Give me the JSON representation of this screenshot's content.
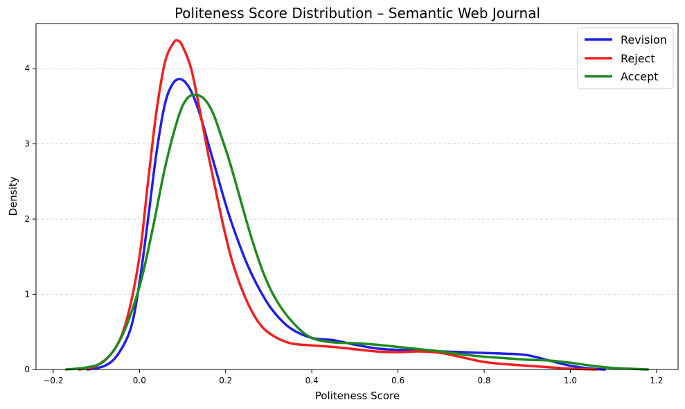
{
  "chart_data": {
    "type": "line",
    "title": "Politeness Score Distribution – Semantic Web Journal",
    "xlabel": "Politeness Score",
    "ylabel": "Density",
    "xlim": [
      -0.24,
      1.25
    ],
    "ylim": [
      0,
      4.6
    ],
    "xticks": [
      -0.2,
      0.0,
      0.2,
      0.4,
      0.6,
      0.8,
      1.0,
      1.2
    ],
    "xtick_labels": [
      "−0.2",
      "0.0",
      "0.2",
      "0.4",
      "0.6",
      "0.8",
      "1.0",
      "1.2"
    ],
    "yticks": [
      0,
      1,
      2,
      3,
      4
    ],
    "ytick_labels": [
      "0",
      "1",
      "2",
      "3",
      "4"
    ],
    "grid": "y-dashed",
    "legend_position": "top-right",
    "series": [
      {
        "name": "Revision",
        "color": "#1f1fe8",
        "x": [
          -0.12,
          -0.08,
          -0.05,
          -0.02,
          0.0,
          0.02,
          0.04,
          0.06,
          0.08,
          0.1,
          0.12,
          0.14,
          0.16,
          0.18,
          0.2,
          0.22,
          0.25,
          0.28,
          0.31,
          0.35,
          0.4,
          0.45,
          0.5,
          0.55,
          0.6,
          0.65,
          0.7,
          0.75,
          0.8,
          0.85,
          0.9,
          0.95,
          1.0,
          1.05,
          1.08
        ],
        "y": [
          0.0,
          0.05,
          0.2,
          0.55,
          1.15,
          2.0,
          2.9,
          3.55,
          3.82,
          3.85,
          3.7,
          3.4,
          3.0,
          2.6,
          2.2,
          1.85,
          1.4,
          1.05,
          0.78,
          0.55,
          0.42,
          0.39,
          0.33,
          0.28,
          0.26,
          0.25,
          0.24,
          0.23,
          0.22,
          0.21,
          0.19,
          0.12,
          0.05,
          0.01,
          0.0
        ]
      },
      {
        "name": "Reject",
        "color": "#f21f1f",
        "x": [
          -0.14,
          -0.1,
          -0.06,
          -0.03,
          0.0,
          0.02,
          0.04,
          0.06,
          0.08,
          0.09,
          0.1,
          0.12,
          0.14,
          0.16,
          0.18,
          0.2,
          0.22,
          0.25,
          0.28,
          0.31,
          0.35,
          0.4,
          0.45,
          0.5,
          0.55,
          0.6,
          0.65,
          0.7,
          0.75,
          0.8,
          0.85,
          0.9,
          0.95,
          1.0,
          1.06
        ],
        "y": [
          0.0,
          0.05,
          0.25,
          0.65,
          1.5,
          2.5,
          3.45,
          4.1,
          4.35,
          4.37,
          4.3,
          4.0,
          3.45,
          2.85,
          2.3,
          1.78,
          1.35,
          0.9,
          0.6,
          0.45,
          0.35,
          0.32,
          0.3,
          0.27,
          0.24,
          0.23,
          0.24,
          0.22,
          0.16,
          0.1,
          0.07,
          0.05,
          0.03,
          0.01,
          0.0
        ]
      },
      {
        "name": "Accept",
        "color": "#1f8a1f",
        "x": [
          -0.17,
          -0.12,
          -0.08,
          -0.04,
          0.0,
          0.03,
          0.06,
          0.09,
          0.11,
          0.13,
          0.15,
          0.17,
          0.19,
          0.21,
          0.23,
          0.26,
          0.29,
          0.32,
          0.36,
          0.4,
          0.45,
          0.5,
          0.55,
          0.6,
          0.65,
          0.7,
          0.75,
          0.8,
          0.85,
          0.9,
          0.95,
          1.0,
          1.05,
          1.1,
          1.18
        ],
        "y": [
          0.0,
          0.03,
          0.12,
          0.45,
          1.1,
          1.85,
          2.7,
          3.35,
          3.6,
          3.65,
          3.6,
          3.42,
          3.1,
          2.75,
          2.35,
          1.75,
          1.25,
          0.9,
          0.6,
          0.42,
          0.36,
          0.35,
          0.33,
          0.3,
          0.27,
          0.24,
          0.2,
          0.17,
          0.15,
          0.13,
          0.12,
          0.09,
          0.05,
          0.02,
          0.0
        ]
      }
    ]
  }
}
